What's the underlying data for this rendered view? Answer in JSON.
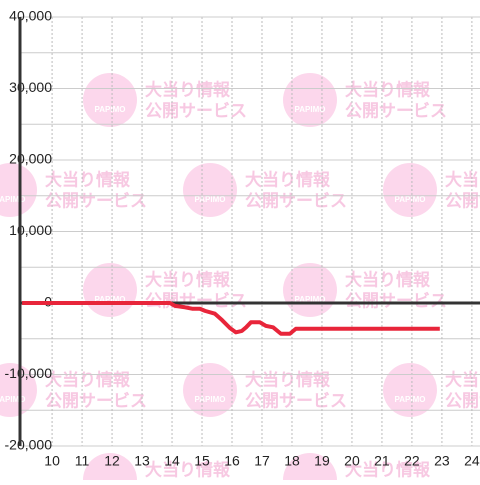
{
  "watermark": {
    "logo": "PAPIMO",
    "line1": "大当り情報",
    "line2": "公開サービス"
  },
  "chart_data": {
    "type": "line",
    "x": [
      9,
      13.93,
      14.1,
      14.43,
      14.67,
      14.93,
      15.1,
      15.43,
      15.67,
      15.93,
      16.13,
      16.33,
      16.47,
      16.63,
      16.93,
      17.13,
      17.37,
      17.63,
      17.93,
      18.13,
      22.93
    ],
    "series": [
      {
        "color": "#e8253a",
        "values": [
          0,
          0,
          -400,
          -600,
          -800,
          -800,
          -1100,
          -1500,
          -2400,
          -3500,
          -4100,
          -3900,
          -3400,
          -2700,
          -2700,
          -3200,
          -3400,
          -4300,
          -4300,
          -3600,
          -3600
        ]
      }
    ],
    "xlim": [
      8.93,
      24.27
    ],
    "xticks": [
      10,
      11,
      12,
      13,
      14,
      15,
      16,
      17,
      18,
      19,
      20,
      21,
      22,
      23,
      24
    ],
    "ylim": [
      -20000,
      40000
    ],
    "yticks": [
      {
        "value": 40000,
        "label": "40,000"
      },
      {
        "value": 30000,
        "label": "30,000"
      },
      {
        "value": 20000,
        "label": "20,000"
      },
      {
        "value": 10000,
        "label": "10,000"
      },
      0,
      {
        "value": -10000,
        "label": "-10,000"
      },
      {
        "value": -20000,
        "label": "-20,000"
      }
    ],
    "yminorticks": [
      35000,
      25000,
      15000,
      5000,
      -5000,
      -15000
    ],
    "grid": true
  }
}
